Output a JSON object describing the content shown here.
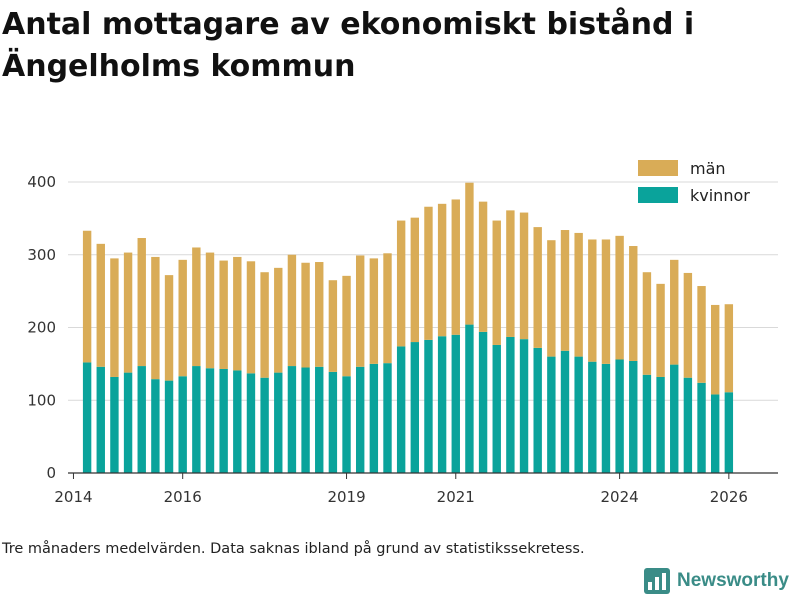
{
  "chart_data": {
    "type": "bar",
    "stacked": true,
    "title": "Antal mottagare av ekonomiskt bistånd i Ängelholms kommun",
    "subtitle": "",
    "xlabel": "",
    "ylabel": "",
    "ylim": [
      0,
      400
    ],
    "yticks": [
      0,
      100,
      200,
      300,
      400
    ],
    "xticks": [
      2014,
      2016,
      2019,
      2021,
      2024,
      2026
    ],
    "x_start": 2014.25,
    "x_step": 0.25,
    "grid": true,
    "legend_position": "top-right",
    "series": [
      {
        "name": "kvinnor",
        "color": "#0aa39b",
        "values": [
          152,
          146,
          132,
          138,
          147,
          129,
          127,
          133,
          147,
          144,
          143,
          141,
          137,
          131,
          138,
          147,
          145,
          146,
          139,
          133,
          146,
          150,
          151,
          174,
          180,
          183,
          188,
          190,
          204,
          194,
          176,
          187,
          184,
          172,
          160,
          168,
          160,
          153,
          150,
          156,
          154,
          135,
          132,
          149,
          131,
          124,
          108,
          111
        ]
      },
      {
        "name": "män",
        "color": "#d9ac57",
        "values": [
          181,
          169,
          163,
          165,
          176,
          168,
          145,
          160,
          163,
          159,
          149,
          156,
          154,
          145,
          144,
          153,
          144,
          144,
          126,
          138,
          153,
          145,
          151,
          173,
          171,
          183,
          182,
          186,
          195,
          179,
          171,
          174,
          174,
          166,
          160,
          166,
          170,
          168,
          171,
          170,
          158,
          141,
          128,
          144,
          144,
          133,
          123,
          121
        ]
      }
    ]
  },
  "caption": "Tre månaders medelvärden. Data saknas ibland på grund av statistikssekretess.",
  "brand": {
    "name": "Newsworthy",
    "logo_icon": "newsworthy-logo-icon",
    "color": "#3a8c87"
  }
}
